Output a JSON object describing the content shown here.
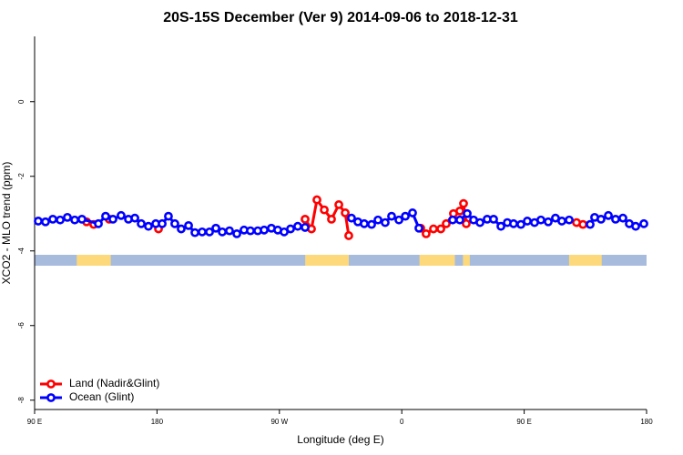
{
  "chart_data": {
    "type": "line",
    "title": "20S-15S December (Ver 9)   2014-09-06 to 2018-12-31",
    "xlabel": "Longitude (deg E)",
    "ylabel": "XCO2 - MLO trend (ppm)",
    "xlim": [
      90,
      540
    ],
    "ylim": [
      -8.25,
      1.75
    ],
    "xticks": [
      {
        "value": 90,
        "label": "90 E"
      },
      180,
      {
        "value": 270,
        "label": "90 W"
      },
      {
        "value": 360,
        "label": "0"
      },
      {
        "value": 450,
        "label": "90 E"
      },
      {
        "value": 540,
        "label": "180"
      }
    ],
    "yticks": [
      0,
      -2,
      -4,
      -6,
      -8
    ],
    "legend": "bottom-left",
    "land_strip": {
      "y": -4.25,
      "ocean_color": "#a7bcdc",
      "land_color": "#fdd97c",
      "land": [
        [
          121,
          146
        ],
        [
          289,
          321
        ],
        [
          373,
          399
        ],
        [
          405,
          410
        ],
        [
          483,
          507
        ]
      ]
    },
    "series": [
      {
        "name": "Land (Nadir&Glint)",
        "color": "#ff0000",
        "x": [
          128.2,
          133.5,
          null,
          144.9,
          null,
          181.1,
          null,
          288.9,
          293.6,
          297.6,
          303,
          308.3,
          313.7,
          318.4,
          321,
          null,
          373.9,
          377.9,
          383.3,
          388.7,
          392.7,
          398,
          402.7,
          405.4,
          407.4,
          null,
          488.5,
          493.2
        ],
        "values": [
          -3.22,
          -3.29,
          null,
          -3.15,
          null,
          -3.41,
          null,
          -3.15,
          -3.41,
          -2.63,
          -2.9,
          -3.15,
          -2.76,
          -2.98,
          -3.59,
          null,
          -3.39,
          -3.54,
          -3.41,
          -3.41,
          -3.27,
          -3.0,
          -2.93,
          -2.73,
          -3.27,
          null,
          -3.24,
          -3.29
        ]
      },
      {
        "name": "Ocean (Glint)",
        "color": "#0000ff",
        "x": [
          92.7,
          98,
          103.4,
          108.8,
          114.1,
          119.5,
          124.8,
          136.9,
          142.2,
          147.6,
          153.6,
          159,
          163.7,
          168.4,
          173.7,
          179.1,
          183.8,
          188.4,
          193.1,
          197.8,
          203.2,
          207.9,
          213.2,
          218.6,
          223.3,
          228,
          233.3,
          238.7,
          244,
          248.7,
          254.1,
          258.8,
          264.1,
          268.8,
          273.5,
          278.2,
          283.5,
          288.9,
          null,
          323,
          327.7,
          332.4,
          337.8,
          342.5,
          347.8,
          352.5,
          357.9,
          362.6,
          367.9,
          372.6,
          null,
          397.4,
          402.7,
          408.1,
          412.8,
          417.5,
          422.8,
          427.5,
          432.9,
          437.6,
          442.2,
          447.6,
          452.3,
          457.6,
          462.3,
          467.7,
          473,
          477.7,
          483.1,
          null,
          498.5,
          501.8,
          506.5,
          511.9,
          517.2,
          522.6,
          527.3,
          532,
          538
        ],
        "values": [
          -3.2,
          -3.22,
          -3.15,
          -3.17,
          -3.1,
          -3.17,
          -3.15,
          -3.27,
          -3.07,
          -3.15,
          -3.05,
          -3.15,
          -3.12,
          -3.27,
          -3.34,
          -3.27,
          -3.27,
          -3.07,
          -3.27,
          -3.41,
          -3.32,
          -3.51,
          -3.49,
          -3.49,
          -3.39,
          -3.49,
          -3.46,
          -3.54,
          -3.44,
          -3.46,
          -3.46,
          -3.44,
          -3.39,
          -3.44,
          -3.49,
          -3.41,
          -3.34,
          -3.37,
          null,
          -3.12,
          -3.22,
          -3.27,
          -3.29,
          -3.17,
          -3.24,
          -3.07,
          -3.17,
          -3.07,
          -2.98,
          -3.39,
          null,
          -3.17,
          -3.17,
          -3.0,
          -3.17,
          -3.24,
          -3.15,
          -3.15,
          -3.34,
          -3.24,
          -3.27,
          -3.29,
          -3.2,
          -3.24,
          -3.17,
          -3.22,
          -3.12,
          -3.2,
          -3.17,
          null,
          -3.29,
          -3.1,
          -3.15,
          -3.05,
          -3.15,
          -3.12,
          -3.27,
          -3.34,
          -3.27
        ]
      }
    ]
  }
}
